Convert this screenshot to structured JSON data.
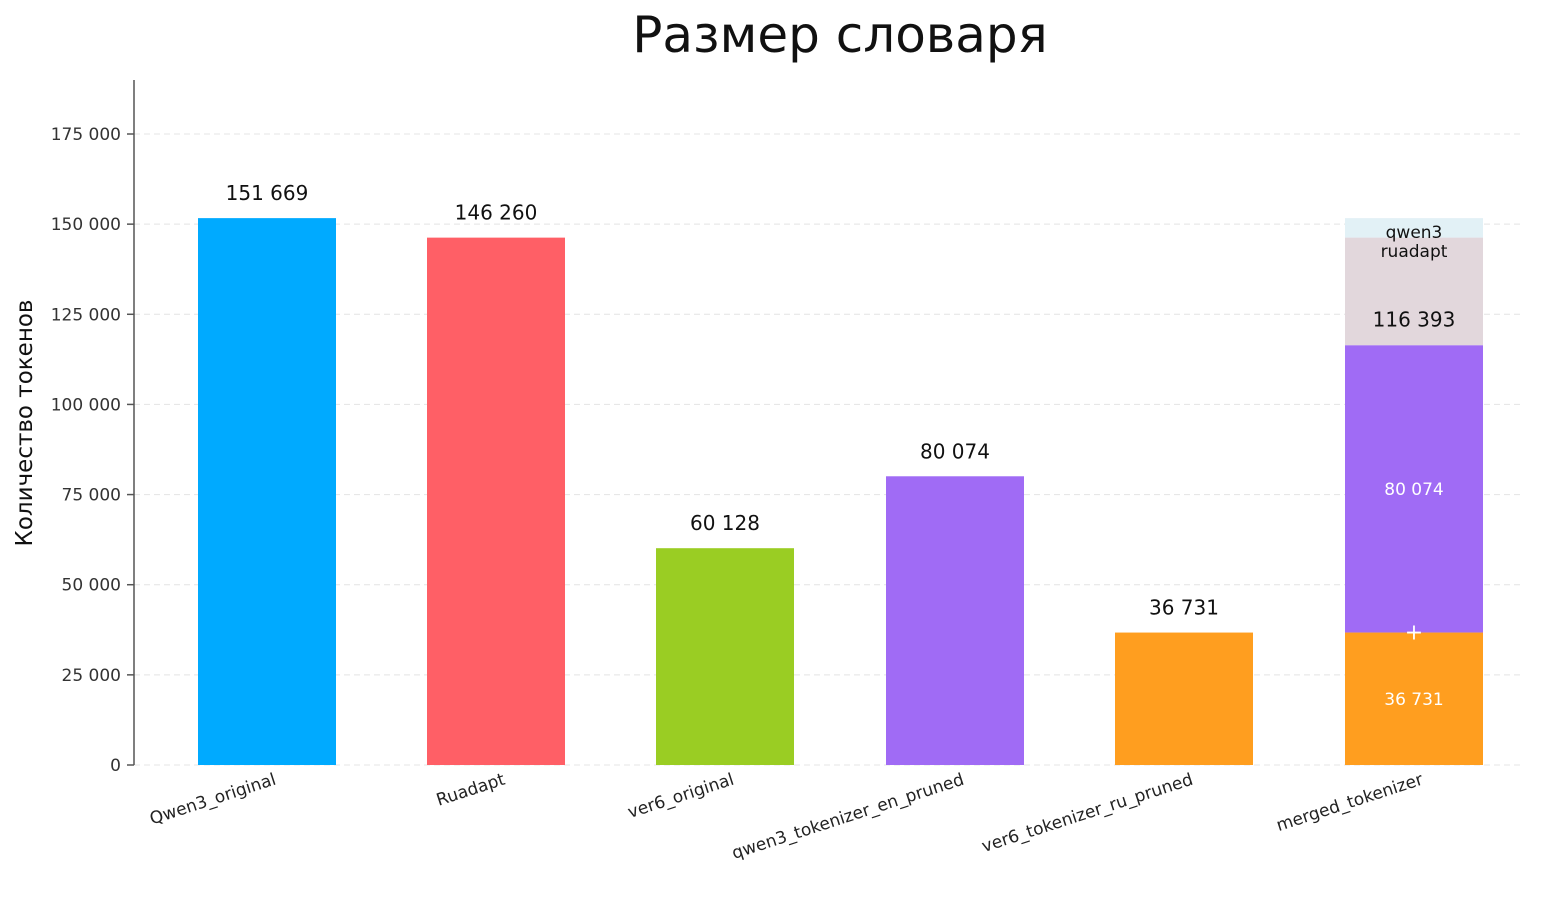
{
  "chart_data": {
    "type": "bar",
    "title": "Размер словаря",
    "xlabel": "",
    "ylabel": "Количество токенов",
    "ylim": [
      0,
      190000
    ],
    "yticks": [
      0,
      25000,
      50000,
      75000,
      100000,
      125000,
      150000,
      175000
    ],
    "ytick_labels": [
      "0",
      "25 000",
      "50 000",
      "75 000",
      "100 000",
      "125 000",
      "150 000",
      "175 000"
    ],
    "grid": "horizontal dashed",
    "categories": [
      "Qwen3_original",
      "Ruadapt",
      "ver6_original",
      "qwen3_tokenizer_en_pruned",
      "ver6_tokenizer_ru_pruned",
      "merged_tokenizer"
    ],
    "values": [
      151669,
      146260,
      60128,
      80074,
      36731,
      116393
    ],
    "value_labels": [
      "151 669",
      "146 260",
      "60 128",
      "80 074",
      "36 731",
      "116 393"
    ],
    "colors": [
      "#00aaff",
      "#ff5f66",
      "#9acd23",
      "#a06bf5",
      "#ff9e1f",
      null
    ],
    "merged_stack": {
      "segments": [
        {
          "name": "ver6_tokenizer_ru_pruned",
          "from": 0,
          "to": 36731,
          "label": "36 731",
          "color": "#ff9e1f"
        },
        {
          "name": "qwen3_tokenizer_en_pruned",
          "from": 36731,
          "to": 116393,
          "label": "80 074",
          "color": "#a06bf5"
        },
        {
          "name": "ruadapt (reference)",
          "from": 116393,
          "to": 146260,
          "label": "ruadapt",
          "color": "#e2d7dc"
        },
        {
          "name": "qwen3 (reference)",
          "from": 146260,
          "to": 151669,
          "label": "qwen3",
          "color": "#e2f1f6"
        }
      ],
      "plus_sign": "+",
      "total_label": "116 393",
      "annotation_colors": {
        "qwen3": "#4b57b8",
        "ruadapt": "#c0504d"
      }
    }
  }
}
